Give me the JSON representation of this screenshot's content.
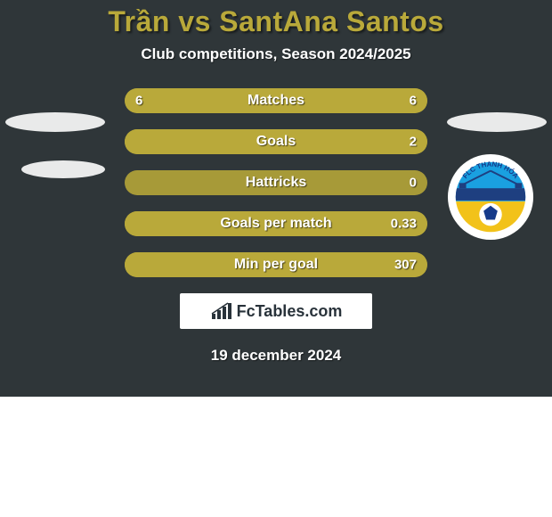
{
  "card": {
    "bg_color": "#2f3639",
    "title_color": "#b9a93a",
    "text_color": "#ffffff",
    "title": "Trần vs SantAna Santos",
    "subtitle": "Club competitions, Season 2024/2025",
    "date": "19 december 2024"
  },
  "ellipses": {
    "left1_bg": "#e9eaea",
    "left2_bg": "#e9eaea",
    "right1_bg": "#e9eaea"
  },
  "crest": {
    "ring_color": "#ffffff",
    "top_text": "FLC THANH HÓA",
    "top_text_color": "#143a8a",
    "sky_color": "#1aa0e0",
    "bridge_color": "#1e3f80",
    "field_color": "#f2c21a",
    "ball_bg": "#ffffff",
    "ball_lines": "#153a8a"
  },
  "bars": {
    "track_color": "#a79a38",
    "fill_color": "#b9a93a",
    "label_color": "#ffffff",
    "value_color": "#ffffff",
    "rows": [
      {
        "label": "Matches",
        "left": "6",
        "right": "6",
        "left_pct": 50,
        "right_pct": 50
      },
      {
        "label": "Goals",
        "left": "",
        "right": "2",
        "left_pct": 0,
        "right_pct": 100
      },
      {
        "label": "Hattricks",
        "left": "",
        "right": "0",
        "left_pct": 0,
        "right_pct": 0
      },
      {
        "label": "Goals per match",
        "left": "",
        "right": "0.33",
        "left_pct": 0,
        "right_pct": 100
      },
      {
        "label": "Min per goal",
        "left": "",
        "right": "307",
        "left_pct": 0,
        "right_pct": 100
      }
    ]
  },
  "brand": {
    "box_bg": "#ffffff",
    "text_color": "#28323a",
    "text": "FcTables.com",
    "icon_color": "#28323a"
  }
}
